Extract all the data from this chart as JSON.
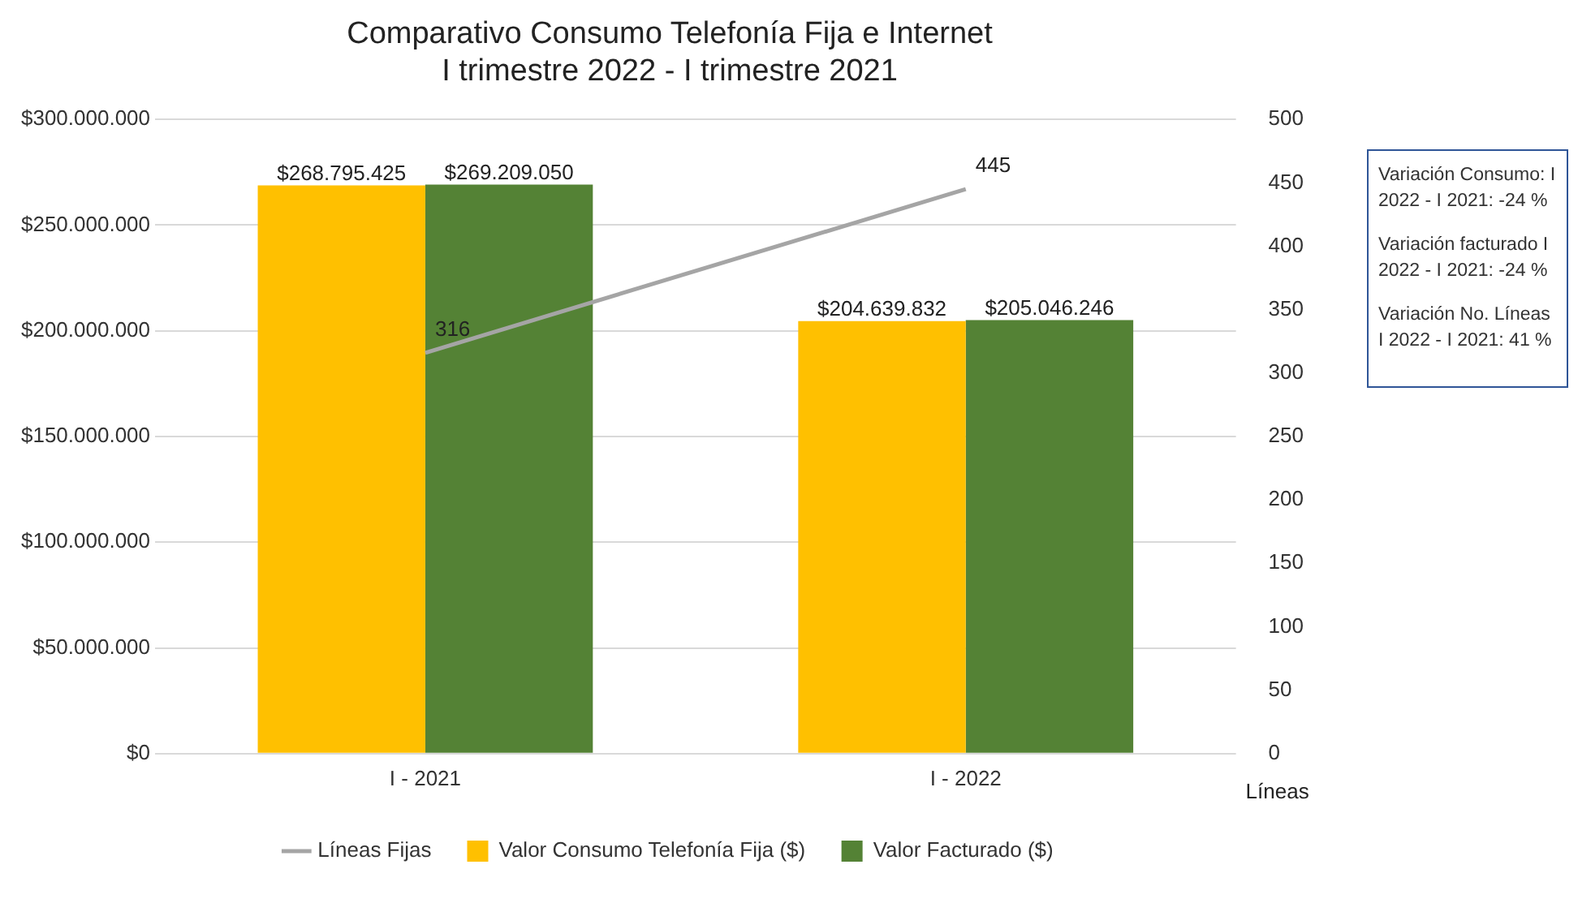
{
  "chart_data": {
    "type": "bar",
    "title": "Comparativo Consumo Telefonía Fija e Internet\nI trimestre 2022 - I trimestre 2021",
    "y2label": "Líneas",
    "categories": [
      "I - 2021",
      "I - 2022"
    ],
    "series": [
      {
        "name": "Valor Consumo Telefonía Fija ($)",
        "color": "#ffc000",
        "values": [
          268795425,
          204639832
        ],
        "value_labels": [
          "$268.795.425",
          "$204.639.832"
        ]
      },
      {
        "name": "Valor Facturado ($)",
        "color": "#548235",
        "values": [
          269209050,
          205046246
        ],
        "value_labels": [
          "$269.209.050",
          "$205.046.246"
        ]
      },
      {
        "name": "Líneas Fijas",
        "type": "line",
        "axis": "y2",
        "color": "#a5a5a5",
        "values": [
          316,
          445
        ],
        "value_labels": [
          "316",
          "445"
        ],
        "marker": "none",
        "line_style": "solid"
      }
    ],
    "ylim": [
      0,
      300000000
    ],
    "yticks": [
      {
        "value": 0,
        "label": "$0"
      },
      {
        "value": 50000000,
        "label": "$50.000.000"
      },
      {
        "value": 100000000,
        "label": "$100.000.000"
      },
      {
        "value": 150000000,
        "label": "$150.000.000"
      },
      {
        "value": 200000000,
        "label": "$200.000.000"
      },
      {
        "value": 250000000,
        "label": "$250.000.000"
      },
      {
        "value": 300000000,
        "label": "$300.000.000"
      }
    ],
    "y2lim": [
      0,
      500
    ],
    "y2ticks": [
      0,
      50,
      100,
      150,
      200,
      250,
      300,
      350,
      400,
      450,
      500
    ],
    "grid": "y",
    "legend": "bottom",
    "annotations": [
      "Variación Consumo: I 2022 - I 2021: -24 %",
      "Variación facturado I 2022 - I 2021: -24 %",
      "Variación No. Líneas I 2022 - I 2021: 41 %"
    ]
  }
}
